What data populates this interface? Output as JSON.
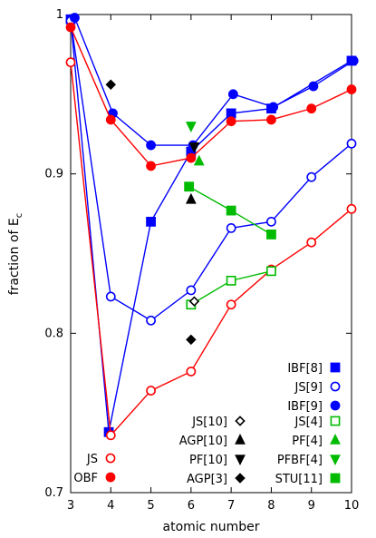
{
  "chart_data": {
    "type": "scatter",
    "xlabel": "atomic number",
    "ylabel_main": "fraction of E",
    "ylabel_sub": "c",
    "xlim": [
      3,
      10
    ],
    "ylim": [
      0.7,
      1.0
    ],
    "xticks": [
      3,
      4,
      5,
      6,
      7,
      8,
      9,
      10
    ],
    "yticks": [
      0.7,
      0.8,
      0.9,
      1.0
    ],
    "ytick_labels": [
      "0.7",
      "0.8",
      "0.9",
      "1"
    ],
    "grid": false,
    "series": [
      {
        "name": "IBF[8]",
        "color": "#0000ff",
        "marker": "square-filled",
        "line": true,
        "points": [
          [
            3,
            0.997
          ],
          [
            3.95,
            0.738
          ],
          [
            5,
            0.87
          ],
          [
            6,
            0.914
          ],
          [
            7,
            0.938
          ],
          [
            8,
            0.941
          ],
          [
            10,
            0.971
          ]
        ]
      },
      {
        "name": "JS[9]",
        "color": "#0000ff",
        "marker": "circle-open",
        "line": true,
        "points": [
          [
            3,
            0.996
          ],
          [
            4,
            0.823
          ],
          [
            5,
            0.808
          ],
          [
            6,
            0.827
          ],
          [
            7,
            0.866
          ],
          [
            8,
            0.87
          ],
          [
            9,
            0.898
          ],
          [
            10,
            0.919
          ]
        ]
      },
      {
        "name": "IBF[9]",
        "color": "#0000ff",
        "marker": "circle-filled",
        "line": true,
        "points": [
          [
            3.1,
            0.998
          ],
          [
            4.05,
            0.938
          ],
          [
            5,
            0.918
          ],
          [
            6.05,
            0.918
          ],
          [
            7.05,
            0.95
          ],
          [
            8.05,
            0.942
          ],
          [
            9.05,
            0.955
          ],
          [
            10.05,
            0.971
          ]
        ]
      },
      {
        "name": "JS",
        "color": "#ff0000",
        "marker": "circle-open",
        "line": true,
        "points": [
          [
            3,
            0.97
          ],
          [
            4,
            0.736
          ],
          [
            5,
            0.764
          ],
          [
            6,
            0.776
          ],
          [
            7,
            0.818
          ],
          [
            8,
            0.84
          ],
          [
            9,
            0.857
          ],
          [
            10,
            0.878
          ]
        ]
      },
      {
        "name": "OBF",
        "color": "#ff0000",
        "marker": "circle-filled",
        "line": true,
        "points": [
          [
            3,
            0.992
          ],
          [
            4,
            0.934
          ],
          [
            5,
            0.905
          ],
          [
            6,
            0.91
          ],
          [
            7,
            0.933
          ],
          [
            8,
            0.934
          ],
          [
            9,
            0.941
          ],
          [
            10,
            0.953
          ]
        ]
      },
      {
        "name": "JS[4]",
        "color": "#00bb00",
        "marker": "square-open",
        "line": true,
        "points": [
          [
            6,
            0.818
          ],
          [
            7,
            0.833
          ],
          [
            8,
            0.839
          ]
        ]
      },
      {
        "name": "STU[11]",
        "color": "#00bb00",
        "marker": "square-filled",
        "line": true,
        "points": [
          [
            5.95,
            0.892
          ],
          [
            7,
            0.877
          ],
          [
            8,
            0.862
          ]
        ]
      },
      {
        "name": "PF[4]",
        "color": "#00bb00",
        "marker": "triangle-up-filled",
        "line": false,
        "points": [
          [
            6.2,
            0.908
          ]
        ]
      },
      {
        "name": "PFBF[4]",
        "color": "#00bb00",
        "marker": "triangle-down-filled",
        "line": false,
        "points": [
          [
            6,
            0.93
          ]
        ]
      },
      {
        "name": "JS[10]",
        "color": "#000000",
        "marker": "diamond-open",
        "line": false,
        "points": [
          [
            6.08,
            0.82
          ]
        ]
      },
      {
        "name": "AGP[10]",
        "color": "#000000",
        "marker": "triangle-up-filled",
        "line": false,
        "points": [
          [
            6,
            0.884
          ]
        ]
      },
      {
        "name": "PF[10]",
        "color": "#000000",
        "marker": "triangle-down-filled",
        "line": false,
        "points": [
          [
            6.08,
            0.917
          ]
        ]
      },
      {
        "name": "AGP[3]",
        "color": "#000000",
        "marker": "diamond-filled",
        "line": false,
        "points": [
          [
            4,
            0.956
          ],
          [
            6,
            0.796
          ]
        ]
      }
    ],
    "legend_right": [
      "IBF[8]",
      "JS[9]",
      "IBF[9]"
    ],
    "legend_grid_left": [
      "JS[10]",
      "AGP[10]",
      "PF[10]",
      "AGP[3]"
    ],
    "legend_grid_right": [
      "JS[4]",
      "PF[4]",
      "PFBF[4]",
      "STU[11]"
    ],
    "legend_bottom_left": [
      "JS",
      "OBF"
    ]
  }
}
